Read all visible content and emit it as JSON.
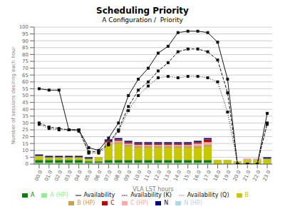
{
  "chart_data": {
    "type": "bar",
    "stacked": true,
    "grid": true,
    "title": "Scheduling Priority",
    "subtitle": "A Configuration /  Priority",
    "x_label": "VLA LST hours",
    "y_label": "Number of sessions desiring each hour",
    "categories": [
      "00.0",
      "01.0",
      "02.0",
      "03.0",
      "04.0",
      "05.0",
      "06.0",
      "07.0",
      "08.0",
      "09.0",
      "10.0",
      "11.0",
      "12.0",
      "13.0",
      "14.0",
      "15.0",
      "16.0",
      "17.0",
      "18.0",
      "19.0",
      "20.0",
      "21.0",
      "22.0",
      "23.0"
    ],
    "ylim": [
      0,
      100
    ],
    "yticks": [
      0,
      5,
      10,
      15,
      20,
      25,
      30,
      35,
      40,
      45,
      50,
      55,
      60,
      65,
      70,
      75,
      80,
      85,
      90,
      95,
      100
    ],
    "series": [
      {
        "name": "A (HP)",
        "type": "bar",
        "color": "#90ee90",
        "values": [
          1,
          1,
          1,
          1,
          1,
          1,
          1,
          1,
          1,
          1,
          1,
          1,
          1,
          1,
          1,
          1,
          1,
          1,
          0,
          0,
          0,
          0,
          0,
          0
        ]
      },
      {
        "name": "A",
        "type": "bar",
        "color": "#008000",
        "values": [
          2,
          2,
          2,
          2,
          2,
          1,
          1,
          2,
          2,
          2,
          2,
          2,
          2,
          2,
          2,
          2,
          2,
          2,
          0,
          0,
          0,
          0,
          0,
          0
        ]
      },
      {
        "name": "B",
        "type": "bar",
        "color": "#c8c800",
        "values": [
          3,
          2,
          2,
          2,
          2,
          2,
          3,
          11,
          12,
          10,
          9,
          9,
          9,
          9,
          9,
          9,
          9,
          10,
          3,
          3,
          2,
          3,
          3,
          4
        ]
      },
      {
        "name": "B (HP)",
        "type": "bar",
        "color": "#c8a050",
        "values": [
          0,
          0,
          0,
          0,
          0,
          0,
          0,
          1,
          1,
          1,
          1,
          1,
          1,
          1,
          1,
          1,
          1,
          1,
          0,
          0,
          0,
          0,
          0,
          0
        ]
      },
      {
        "name": "C (HP)",
        "type": "bar",
        "color": "#ffaaaa",
        "values": [
          0,
          0,
          0,
          0,
          0,
          0,
          0,
          1,
          1,
          1,
          1,
          1,
          1,
          1,
          1,
          1,
          2,
          2,
          0,
          0,
          0,
          1,
          1,
          0
        ]
      },
      {
        "name": "C",
        "type": "bar",
        "color": "#c00000",
        "values": [
          0,
          0,
          0,
          0,
          0,
          0,
          0,
          1,
          1,
          1,
          1,
          1,
          1,
          1,
          1,
          1,
          1,
          2,
          0,
          0,
          0,
          0,
          0,
          0
        ]
      },
      {
        "name": "N (HP)",
        "type": "bar",
        "color": "#add8e6",
        "values": [
          0,
          0,
          0,
          0,
          0,
          0,
          0,
          0,
          0,
          0,
          0,
          0,
          0,
          0,
          0,
          0,
          0,
          0,
          0,
          0,
          0,
          0,
          0,
          0
        ]
      },
      {
        "name": "N",
        "type": "bar",
        "color": "#000080",
        "values": [
          1,
          1,
          1,
          1,
          1,
          1,
          0,
          1,
          1,
          1,
          1,
          1,
          1,
          1,
          1,
          1,
          1,
          1,
          0,
          0,
          0,
          0,
          0,
          1
        ]
      },
      {
        "name": "Availability",
        "type": "line",
        "color": "#111111",
        "line_style": "solid",
        "marker": "square",
        "values": [
          55,
          54,
          54,
          25,
          25,
          12,
          10,
          19,
          30,
          50,
          62,
          70,
          81,
          86,
          96,
          97,
          97,
          96,
          89,
          62,
          0,
          0,
          0,
          37
        ]
      },
      {
        "name": "Availability (K)",
        "type": "line",
        "color": "#111111",
        "line_style": "dashed",
        "marker": "square",
        "values": [
          30,
          27,
          26,
          25,
          25,
          9,
          9,
          15,
          25,
          42,
          54,
          60,
          68,
          74,
          82,
          84,
          84,
          82,
          76,
          52,
          0,
          0,
          0,
          30
        ]
      },
      {
        "name": "Availability (Q)",
        "type": "line",
        "color": "#111111",
        "line_style": "dotted",
        "marker": "square",
        "values": [
          29,
          26,
          25,
          25,
          24,
          8,
          8,
          14,
          24,
          39,
          50,
          57,
          63,
          64,
          63,
          64,
          64,
          63,
          60,
          38,
          0,
          0,
          0,
          29
        ]
      }
    ]
  }
}
